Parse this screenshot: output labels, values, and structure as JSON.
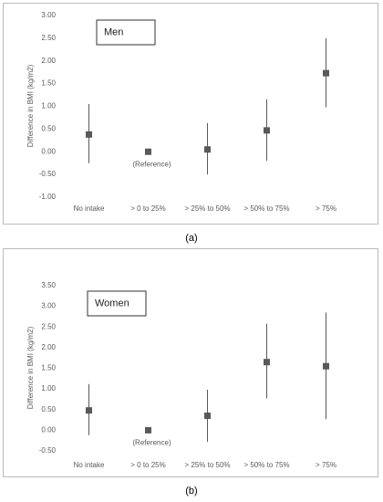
{
  "chart_data": [
    {
      "type": "errorbar",
      "label": "Men",
      "ylabel": "Difference in BMI (kg/m2)",
      "annotation": "(Reference)",
      "caption": "(a)",
      "categories": [
        "No intake",
        "> 0 to 25%",
        "> 25% to 50%",
        "> 50% to 75%",
        "> 75%"
      ],
      "values": [
        0.38,
        0.0,
        0.05,
        0.47,
        1.73
      ],
      "lower": [
        -0.25,
        null,
        -0.5,
        -0.2,
        0.98
      ],
      "upper": [
        1.05,
        null,
        0.63,
        1.15,
        2.5
      ],
      "color": "#595959",
      "ylim": [
        -1,
        3
      ],
      "yticks": [
        {
          "value": -1,
          "label": "-1.00"
        },
        {
          "value": -0.5,
          "label": "-0.50"
        },
        {
          "value": 0,
          "label": "0.00"
        },
        {
          "value": 0.5,
          "label": "0.50"
        },
        {
          "value": 1,
          "label": "1.00"
        },
        {
          "value": 1.5,
          "label": "1.50"
        },
        {
          "value": 2,
          "label": "2.00"
        },
        {
          "value": 2.5,
          "label": "2.50"
        },
        {
          "value": 3,
          "label": "3.00"
        }
      ]
    },
    {
      "type": "errorbar",
      "label": "Women",
      "ylabel": "Difference in BMI (kg/m2)",
      "annotation": "(Reference)",
      "caption": "(b)",
      "categories": [
        "No intake",
        "> 0 to 25%",
        "> 25% to 50%",
        "> 50% to 75%",
        "> 75%"
      ],
      "values": [
        0.48,
        0.0,
        0.35,
        1.65,
        1.55
      ],
      "lower": [
        -0.12,
        null,
        -0.28,
        0.77,
        0.27
      ],
      "upper": [
        1.12,
        null,
        0.98,
        2.58,
        2.85
      ],
      "color": "#595959",
      "ylim": [
        -0.5,
        3.5
      ],
      "yticks": [
        {
          "value": -0.5,
          "label": "-0.50"
        },
        {
          "value": 0,
          "label": "0.00"
        },
        {
          "value": 0.5,
          "label": "0.50"
        },
        {
          "value": 1,
          "label": "1.00"
        },
        {
          "value": 1.5,
          "label": "1.50"
        },
        {
          "value": 2,
          "label": "2.00"
        },
        {
          "value": 2.5,
          "label": "2.50"
        },
        {
          "value": 3,
          "label": "3.00"
        },
        {
          "value": 3.5,
          "label": "3.50"
        }
      ]
    }
  ]
}
